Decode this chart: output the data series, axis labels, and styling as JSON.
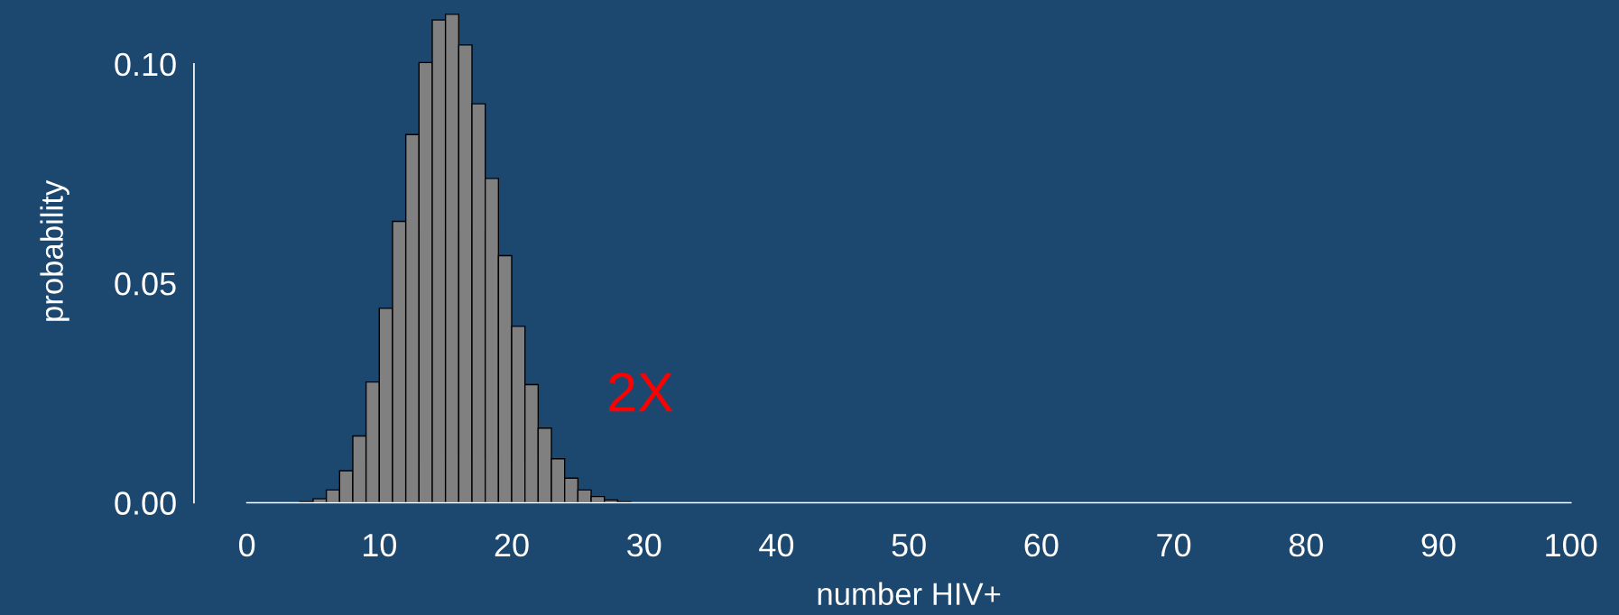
{
  "chart_data": {
    "type": "histogram",
    "xlabel": "number HIV+",
    "ylabel": "probability",
    "annotations": [
      "2X"
    ],
    "bins": [
      0,
      1,
      2,
      3,
      4,
      5,
      6,
      7,
      8,
      9,
      10,
      11,
      12,
      13,
      14,
      15,
      16,
      17,
      18,
      19,
      20,
      21,
      22,
      23,
      24,
      25,
      26,
      27,
      28,
      29,
      30,
      31,
      32,
      33,
      34,
      35,
      36,
      37,
      38,
      39,
      40,
      41,
      42,
      43,
      44,
      45,
      46,
      47,
      48,
      49,
      50,
      51,
      52,
      53,
      54,
      55,
      56,
      57,
      58,
      59,
      60,
      61,
      62,
      63,
      64,
      65,
      66,
      67,
      68,
      69,
      70,
      71,
      72,
      73,
      74,
      75,
      76,
      77,
      78,
      79,
      80,
      81,
      82,
      83,
      84,
      85,
      86,
      87,
      88,
      89,
      90,
      91,
      92,
      93,
      94,
      95,
      96,
      97,
      98,
      99,
      100,
      101
    ],
    "values": [
      0,
      0,
      0,
      0,
      0.0002,
      0.0009,
      0.0029,
      0.0073,
      0.0152,
      0.0275,
      0.0443,
      0.0641,
      0.0839,
      0.1003,
      0.11,
      0.1113,
      0.1043,
      0.0909,
      0.0739,
      0.0563,
      0.0402,
      0.0269,
      0.017,
      0.01,
      0.0056,
      0.0029,
      0.0014,
      0.0006,
      0.0002,
      0,
      0,
      0,
      0,
      0,
      0,
      0,
      0,
      0,
      0,
      0,
      0,
      0,
      0,
      0,
      0,
      0,
      0,
      0,
      0,
      0,
      0,
      0,
      0,
      0,
      0,
      0,
      0,
      0,
      0,
      0,
      0,
      0,
      0,
      0,
      0,
      0,
      0,
      0,
      0,
      0,
      0,
      0,
      0,
      0,
      0,
      0,
      0,
      0,
      0,
      0,
      0,
      0,
      0,
      0,
      0,
      0,
      0,
      0,
      0,
      0,
      0,
      0,
      0,
      0,
      0,
      0,
      0,
      0,
      0,
      0,
      0
    ],
    "color": "#808080",
    "xlim": [
      -4,
      103
    ],
    "ylim": [
      0,
      0.1145
    ],
    "xticks": [
      0,
      10,
      20,
      30,
      40,
      50,
      60,
      70,
      80,
      90,
      100
    ],
    "yticks": [
      {
        "value": 0,
        "label": "0.00"
      },
      {
        "value": 0.05,
        "label": "0.05"
      },
      {
        "value": 0.1,
        "label": "0.10"
      }
    ]
  }
}
